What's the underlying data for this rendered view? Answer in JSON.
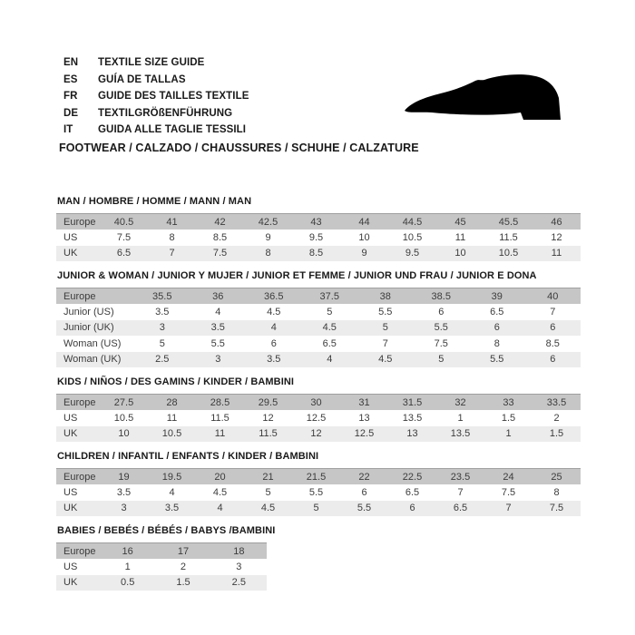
{
  "header": {
    "languages": [
      {
        "code": "EN",
        "label": "TEXTILE SIZE GUIDE"
      },
      {
        "code": "ES",
        "label": "GUÍA DE TALLAS"
      },
      {
        "code": "FR",
        "label": "GUIDE DES TAILLES TEXTILE"
      },
      {
        "code": "DE",
        "label": "TEXTILGRÖßENFÜHRUNG"
      },
      {
        "code": "IT",
        "label": "GUIDA ALLE TAGLIE TESSILI"
      }
    ],
    "category_line": "FOOTWEAR / CALZADO / CHAUSSURES / SCHUHE / CALZATURE",
    "icon": "dress-shoe-silhouette-icon"
  },
  "colors": {
    "page_bg": "#ffffff",
    "header_row_bg": "#c6c6c6",
    "header_row_border": "#9f9f9f",
    "alt_row_bg": "#ececec",
    "row_bg": "#ffffff",
    "cell_text": "#3c3c3c",
    "title_text": "#1a1a1a",
    "icon_color": "#000000"
  },
  "tables": [
    {
      "title": "MAN / HOMBRE / HOMME / MANN / MAN",
      "rows": [
        {
          "label": "Europe",
          "values": [
            "40.5",
            "41",
            "42",
            "42.5",
            "43",
            "44",
            "44.5",
            "45",
            "45.5",
            "46"
          ]
        },
        {
          "label": "US",
          "values": [
            "7.5",
            "8",
            "8.5",
            "9",
            "9.5",
            "10",
            "10.5",
            "11",
            "11.5",
            "12"
          ]
        },
        {
          "label": "UK",
          "values": [
            "6.5",
            "7",
            "7.5",
            "8",
            "8.5",
            "9",
            "9.5",
            "10",
            "10.5",
            "11"
          ]
        }
      ]
    },
    {
      "title": "JUNIOR & WOMAN / JUNIOR Y MUJER / JUNIOR ET FEMME / JUNIOR UND FRAU / JUNIOR E DONA",
      "rows": [
        {
          "label": "Europe",
          "values": [
            "35.5",
            "36",
            "36.5",
            "37.5",
            "38",
            "38.5",
            "39",
            "40"
          ]
        },
        {
          "label": "Junior (US)",
          "values": [
            "3.5",
            "4",
            "4.5",
            "5",
            "5.5",
            "6",
            "6.5",
            "7"
          ]
        },
        {
          "label": "Junior (UK)",
          "values": [
            "3",
            "3.5",
            "4",
            "4.5",
            "5",
            "5.5",
            "6",
            "6"
          ]
        },
        {
          "label": "Woman (US)",
          "values": [
            "5",
            "5.5",
            "6",
            "6.5",
            "7",
            "7.5",
            "8",
            "8.5"
          ]
        },
        {
          "label": "Woman (UK)",
          "values": [
            "2.5",
            "3",
            "3.5",
            "4",
            "4.5",
            "5",
            "5.5",
            "6"
          ]
        }
      ]
    },
    {
      "title": "KIDS / NIÑOS / DES GAMINS / KINDER / BAMBINI",
      "rows": [
        {
          "label": "Europe",
          "values": [
            "27.5",
            "28",
            "28.5",
            "29.5",
            "30",
            "31",
            "31.5",
            "32",
            "33",
            "33.5"
          ]
        },
        {
          "label": "US",
          "values": [
            "10.5",
            "11",
            "11.5",
            "12",
            "12.5",
            "13",
            "13.5",
            "1",
            "1.5",
            "2"
          ]
        },
        {
          "label": "UK",
          "values": [
            "10",
            "10.5",
            "11",
            "11.5",
            "12",
            "12.5",
            "13",
            "13.5",
            "1",
            "1.5"
          ]
        }
      ]
    },
    {
      "title": "CHILDREN / INFANTIL / ENFANTS / KINDER / BAMBINI",
      "rows": [
        {
          "label": "Europe",
          "values": [
            "19",
            "19.5",
            "20",
            "21",
            "21.5",
            "22",
            "22.5",
            "23.5",
            "24",
            "25"
          ]
        },
        {
          "label": "US",
          "values": [
            "3.5",
            "4",
            "4.5",
            "5",
            "5.5",
            "6",
            "6.5",
            "7",
            "7.5",
            "8"
          ]
        },
        {
          "label": "UK",
          "values": [
            "3",
            "3.5",
            "4",
            "4.5",
            "5",
            "5.5",
            "6",
            "6.5",
            "7",
            "7.5"
          ]
        }
      ]
    },
    {
      "title": "BABIES / BEBÉS / BÉBÉS / BABYS /BAMBINI",
      "rows": [
        {
          "label": "Europe",
          "values": [
            "16",
            "17",
            "18"
          ]
        },
        {
          "label": "US",
          "values": [
            "1",
            "2",
            "3"
          ]
        },
        {
          "label": "UK",
          "values": [
            "0.5",
            "1.5",
            "2.5"
          ]
        }
      ]
    }
  ]
}
